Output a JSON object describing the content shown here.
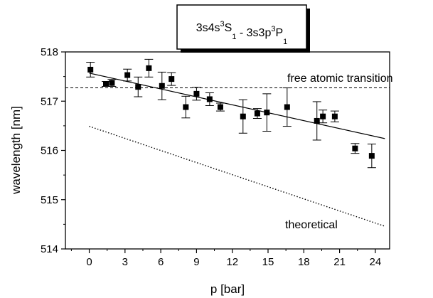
{
  "chart_data": {
    "type": "scatter",
    "title_parts": [
      "3s4s",
      "3",
      "S",
      "1",
      " - 3s3p",
      "3",
      "P",
      "1"
    ],
    "xlabel": "p [bar]",
    "ylabel": "wavelength [nm]",
    "xlim": [
      -2,
      25.2
    ],
    "ylim": [
      514,
      518
    ],
    "xticks": [
      0,
      3,
      6,
      9,
      12,
      15,
      18,
      21,
      24
    ],
    "yticks": [
      514,
      515,
      516,
      517,
      518
    ],
    "points": [
      {
        "x": 0.1,
        "y": 517.64,
        "err": 0.15
      },
      {
        "x": 1.4,
        "y": 517.35,
        "err": 0.05
      },
      {
        "x": 1.9,
        "y": 517.37,
        "err": 0.07
      },
      {
        "x": 3.2,
        "y": 517.53,
        "err": 0.12
      },
      {
        "x": 4.1,
        "y": 517.29,
        "err": 0.2
      },
      {
        "x": 5.0,
        "y": 517.67,
        "err": 0.18
      },
      {
        "x": 6.1,
        "y": 517.31,
        "err": 0.28
      },
      {
        "x": 6.9,
        "y": 517.45,
        "err": 0.13
      },
      {
        "x": 8.1,
        "y": 516.88,
        "err": 0.22
      },
      {
        "x": 9.0,
        "y": 517.15,
        "err": 0.13
      },
      {
        "x": 10.1,
        "y": 517.04,
        "err": 0.13
      },
      {
        "x": 11.0,
        "y": 516.88,
        "err": 0.08
      },
      {
        "x": 12.9,
        "y": 516.69,
        "err": 0.34
      },
      {
        "x": 14.1,
        "y": 516.75,
        "err": 0.1
      },
      {
        "x": 14.9,
        "y": 516.77,
        "err": 0.38
      },
      {
        "x": 16.6,
        "y": 516.88,
        "err": 0.39
      },
      {
        "x": 19.1,
        "y": 516.6,
        "err": 0.39
      },
      {
        "x": 19.6,
        "y": 516.69,
        "err": 0.13
      },
      {
        "x": 20.6,
        "y": 516.69,
        "err": 0.11
      },
      {
        "x": 22.3,
        "y": 516.04,
        "err": 0.1
      },
      {
        "x": 23.7,
        "y": 515.89,
        "err": 0.24
      }
    ],
    "fit_line": {
      "x": [
        0,
        24.8
      ],
      "y": [
        517.57,
        516.24
      ]
    },
    "free_atomic_transition": {
      "y": 517.27,
      "label": "free atomic transition"
    },
    "theoretical": {
      "x": [
        0,
        24.8
      ],
      "y": [
        516.49,
        514.46
      ],
      "label": "theoretical"
    }
  }
}
